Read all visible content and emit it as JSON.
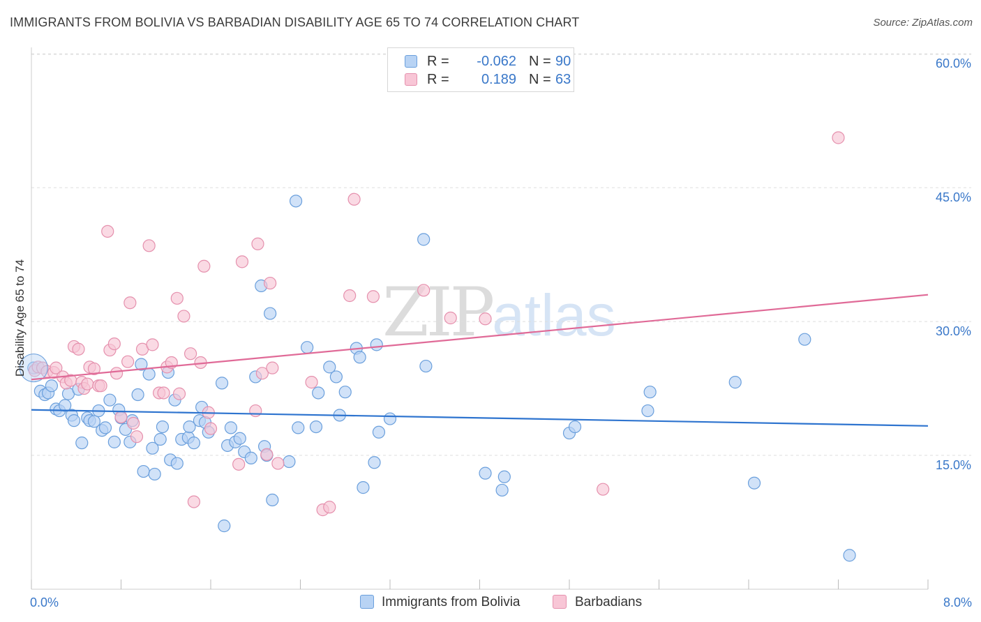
{
  "title": "IMMIGRANTS FROM BOLIVIA VS BARBADIAN DISABILITY AGE 65 TO 74 CORRELATION CHART",
  "source": "Source: ZipAtlas.com",
  "watermark": {
    "zip": "ZIP",
    "atlas": "atlas"
  },
  "legend": {
    "rows": [
      {
        "r_label": "R =",
        "r_value": "-0.062",
        "n_label": "N =",
        "n_value": "90"
      },
      {
        "r_label": "R =",
        "r_value": "0.189",
        "n_label": "N =",
        "n_value": "63"
      }
    ]
  },
  "bottom_legend": {
    "series1": "Immigrants from Bolivia",
    "series2": "Barbadians"
  },
  "colors": {
    "blue_fill": "#b8d3f4",
    "blue_stroke": "#6a9fdc",
    "blue_line": "#2e74cf",
    "pink_fill": "#f8c6d6",
    "pink_stroke": "#e590ad",
    "pink_line": "#e06a97",
    "axis_label": "#3a78c9",
    "grid": "#dddddd"
  },
  "chart_data": {
    "type": "scatter",
    "title": "IMMIGRANTS FROM BOLIVIA VS BARBADIAN DISABILITY AGE 65 TO 74 CORRELATION CHART",
    "xlabel": "",
    "ylabel": "Disability Age 65 to 74",
    "xlim": [
      0,
      8
    ],
    "ylim": [
      0,
      61.5
    ],
    "x_tick_labels": [
      "0.0%",
      "8.0%"
    ],
    "y_ticks": [
      15,
      30,
      45,
      60
    ],
    "y_tick_labels": [
      "15.0%",
      "30.0%",
      "45.0%",
      "60.0%"
    ],
    "grid": true,
    "series": [
      {
        "name": "Immigrants from Bolivia",
        "color": "#b8d3f4",
        "trend": {
          "x": [
            0,
            8
          ],
          "y": [
            20.1,
            18.3
          ]
        },
        "points": [
          [
            0.02,
            24.8
          ],
          [
            0.08,
            22.2
          ],
          [
            0.12,
            21.8
          ],
          [
            0.15,
            22.0
          ],
          [
            0.18,
            22.8
          ],
          [
            0.22,
            20.2
          ],
          [
            0.25,
            20.0
          ],
          [
            0.3,
            20.6
          ],
          [
            0.33,
            21.9
          ],
          [
            0.36,
            19.5
          ],
          [
            0.38,
            18.9
          ],
          [
            0.42,
            22.4
          ],
          [
            0.45,
            16.4
          ],
          [
            0.5,
            19.2
          ],
          [
            0.52,
            18.9
          ],
          [
            0.56,
            18.8
          ],
          [
            0.6,
            20.0
          ],
          [
            0.63,
            17.8
          ],
          [
            0.66,
            18.1
          ],
          [
            0.7,
            21.2
          ],
          [
            0.74,
            16.5
          ],
          [
            0.78,
            20.1
          ],
          [
            0.8,
            19.2
          ],
          [
            0.84,
            17.9
          ],
          [
            0.88,
            16.5
          ],
          [
            0.9,
            18.9
          ],
          [
            0.95,
            21.8
          ],
          [
            0.98,
            25.2
          ],
          [
            1.0,
            13.2
          ],
          [
            1.05,
            24.1
          ],
          [
            1.08,
            15.8
          ],
          [
            1.1,
            12.9
          ],
          [
            1.15,
            16.8
          ],
          [
            1.17,
            18.2
          ],
          [
            1.22,
            24.3
          ],
          [
            1.24,
            14.5
          ],
          [
            1.28,
            21.2
          ],
          [
            1.3,
            14.1
          ],
          [
            1.34,
            16.8
          ],
          [
            1.4,
            17.0
          ],
          [
            1.41,
            18.2
          ],
          [
            1.45,
            16.4
          ],
          [
            1.5,
            18.9
          ],
          [
            1.52,
            20.4
          ],
          [
            1.55,
            18.7
          ],
          [
            1.58,
            17.6
          ],
          [
            1.7,
            23.1
          ],
          [
            1.72,
            7.1
          ],
          [
            1.75,
            16.1
          ],
          [
            1.78,
            18.1
          ],
          [
            1.82,
            16.5
          ],
          [
            1.86,
            16.9
          ],
          [
            1.9,
            15.4
          ],
          [
            1.96,
            14.7
          ],
          [
            2.0,
            23.8
          ],
          [
            2.05,
            34.0
          ],
          [
            2.08,
            16.0
          ],
          [
            2.1,
            15.0
          ],
          [
            2.13,
            30.9
          ],
          [
            2.15,
            10.0
          ],
          [
            2.3,
            14.3
          ],
          [
            2.36,
            43.5
          ],
          [
            2.38,
            18.1
          ],
          [
            2.46,
            27.1
          ],
          [
            2.54,
            18.2
          ],
          [
            2.56,
            22.0
          ],
          [
            2.66,
            24.9
          ],
          [
            2.72,
            23.8
          ],
          [
            2.75,
            19.5
          ],
          [
            2.8,
            22.1
          ],
          [
            2.9,
            27.0
          ],
          [
            2.93,
            26.0
          ],
          [
            2.96,
            11.4
          ],
          [
            3.06,
            14.2
          ],
          [
            3.08,
            27.4
          ],
          [
            3.1,
            17.6
          ],
          [
            3.2,
            19.1
          ],
          [
            3.5,
            39.2
          ],
          [
            3.52,
            25.0
          ],
          [
            4.05,
            13.0
          ],
          [
            4.2,
            11.1
          ],
          [
            4.22,
            12.6
          ],
          [
            4.8,
            17.5
          ],
          [
            4.85,
            18.2
          ],
          [
            5.5,
            20.0
          ],
          [
            5.52,
            22.1
          ],
          [
            6.28,
            23.2
          ],
          [
            6.45,
            11.9
          ],
          [
            6.9,
            28.0
          ],
          [
            7.3,
            3.8
          ]
        ]
      },
      {
        "name": "Barbadians",
        "color": "#f8c6d6",
        "trend": {
          "x": [
            0,
            8
          ],
          "y": [
            23.5,
            33.0
          ]
        },
        "points": [
          [
            0.03,
            24.5
          ],
          [
            0.06,
            24.9
          ],
          [
            0.1,
            24.8
          ],
          [
            0.14,
            24.4
          ],
          [
            0.2,
            24.3
          ],
          [
            0.22,
            24.8
          ],
          [
            0.28,
            23.8
          ],
          [
            0.31,
            23.1
          ],
          [
            0.35,
            23.4
          ],
          [
            0.38,
            27.2
          ],
          [
            0.42,
            26.9
          ],
          [
            0.45,
            23.2
          ],
          [
            0.47,
            22.5
          ],
          [
            0.5,
            23.0
          ],
          [
            0.52,
            24.9
          ],
          [
            0.56,
            24.7
          ],
          [
            0.6,
            22.8
          ],
          [
            0.62,
            22.8
          ],
          [
            0.68,
            40.1
          ],
          [
            0.7,
            26.8
          ],
          [
            0.74,
            27.5
          ],
          [
            0.76,
            24.2
          ],
          [
            0.8,
            19.3
          ],
          [
            0.86,
            25.5
          ],
          [
            0.88,
            32.1
          ],
          [
            0.91,
            18.6
          ],
          [
            0.94,
            17.1
          ],
          [
            0.99,
            26.9
          ],
          [
            1.05,
            38.5
          ],
          [
            1.08,
            27.4
          ],
          [
            1.14,
            22.0
          ],
          [
            1.18,
            22.0
          ],
          [
            1.21,
            24.9
          ],
          [
            1.25,
            25.4
          ],
          [
            1.3,
            32.6
          ],
          [
            1.32,
            21.9
          ],
          [
            1.36,
            30.6
          ],
          [
            1.42,
            26.4
          ],
          [
            1.45,
            9.8
          ],
          [
            1.51,
            25.4
          ],
          [
            1.54,
            36.2
          ],
          [
            1.58,
            19.8
          ],
          [
            1.6,
            18.0
          ],
          [
            1.85,
            14.0
          ],
          [
            1.88,
            36.7
          ],
          [
            2.0,
            20.0
          ],
          [
            2.02,
            38.7
          ],
          [
            2.06,
            24.2
          ],
          [
            2.1,
            15.1
          ],
          [
            2.13,
            34.3
          ],
          [
            2.15,
            24.8
          ],
          [
            2.2,
            14.1
          ],
          [
            2.5,
            23.2
          ],
          [
            2.6,
            8.9
          ],
          [
            2.66,
            9.2
          ],
          [
            2.84,
            32.9
          ],
          [
            2.88,
            43.7
          ],
          [
            3.05,
            32.8
          ],
          [
            3.5,
            33.5
          ],
          [
            3.74,
            30.4
          ],
          [
            4.05,
            30.3
          ],
          [
            5.1,
            11.2
          ],
          [
            7.2,
            50.6
          ]
        ]
      }
    ]
  }
}
